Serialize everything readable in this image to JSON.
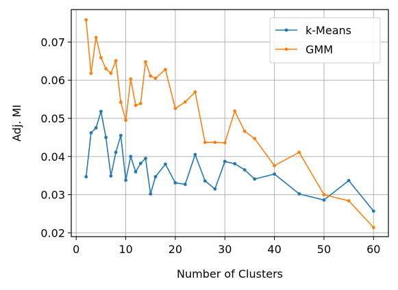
{
  "chart_data": {
    "type": "line",
    "xlabel": "Number of Clusters",
    "ylabel": "Adj. MI",
    "xlim": [
      -1,
      63
    ],
    "ylim": [
      0.019,
      0.0785
    ],
    "xticks": [
      0,
      10,
      20,
      30,
      40,
      50,
      60
    ],
    "yticks": [
      0.02,
      0.03,
      0.04,
      0.05,
      0.06,
      0.07
    ],
    "ytick_labels": [
      "0.02",
      "0.03",
      "0.04",
      "0.05",
      "0.06",
      "0.07"
    ],
    "grid": true,
    "legend_position": "top-right",
    "series": [
      {
        "name": "k-Means",
        "color": "#1f77b4",
        "x": [
          2,
          3,
          4,
          5,
          6,
          7,
          8,
          9,
          10,
          11,
          12,
          13,
          14,
          15,
          16,
          18,
          20,
          22,
          24,
          26,
          28,
          30,
          32,
          34,
          36,
          40,
          45,
          50,
          55,
          60
        ],
        "y": [
          0.0347,
          0.0462,
          0.0475,
          0.0518,
          0.045,
          0.0349,
          0.0411,
          0.0455,
          0.0338,
          0.04,
          0.036,
          0.0382,
          0.0395,
          0.0302,
          0.0347,
          0.038,
          0.0331,
          0.0327,
          0.0405,
          0.0336,
          0.0315,
          0.0387,
          0.0381,
          0.0365,
          0.0341,
          0.0354,
          0.0302,
          0.0286,
          0.0337,
          0.0257
        ]
      },
      {
        "name": "GMM",
        "color": "#ff7f0e",
        "x": [
          2,
          3,
          4,
          5,
          6,
          7,
          8,
          9,
          10,
          11,
          12,
          13,
          14,
          15,
          16,
          18,
          20,
          22,
          24,
          26,
          28,
          30,
          32,
          34,
          36,
          40,
          45,
          50,
          55,
          60
        ],
        "y": [
          0.0758,
          0.0618,
          0.0712,
          0.0659,
          0.063,
          0.0618,
          0.0651,
          0.0542,
          0.0495,
          0.0603,
          0.0534,
          0.0539,
          0.0648,
          0.0611,
          0.0605,
          0.0628,
          0.0526,
          0.0543,
          0.0569,
          0.0437,
          0.0437,
          0.0436,
          0.0519,
          0.0466,
          0.0447,
          0.0376,
          0.0411,
          0.03,
          0.0284,
          0.0214
        ]
      }
    ]
  }
}
